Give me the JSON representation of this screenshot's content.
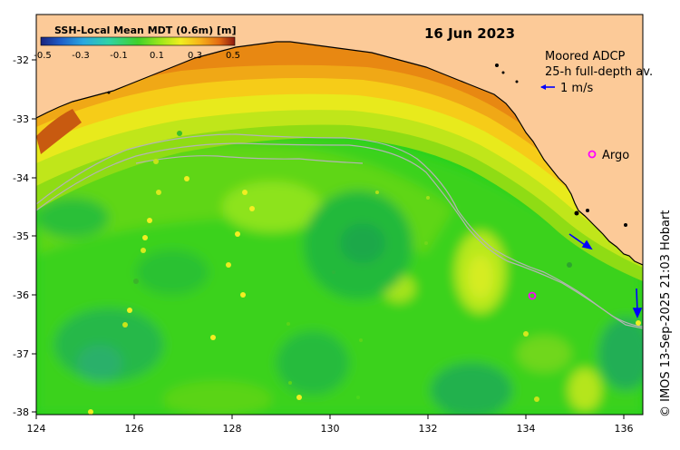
{
  "title": "16 Jun 2023",
  "colorbar": {
    "label": "SSH-Local Mean MDT (0.6m) [m]",
    "ticks": [
      "-0.5",
      "-0.3",
      "-0.1",
      "0.1",
      "0.3",
      "0.5"
    ],
    "min": -0.5,
    "max": 0.5
  },
  "legend": {
    "adcp_line1": "Moored ADCP",
    "adcp_line2": "25-h full-depth av.",
    "scale_label": "1 m/s",
    "argo_label": "Argo"
  },
  "credit": "© IMOS 13-Sep-2025 21:03 Hobart",
  "colors": {
    "land": "#fcca98",
    "argo": "#ff00ff",
    "arrow": "#0000ff",
    "contour": "#b4b4b4"
  },
  "axes": {
    "x_ticks": [
      "124",
      "126",
      "128",
      "130",
      "132",
      "134",
      "136"
    ],
    "y_ticks": [
      "-32",
      "-33",
      "-34",
      "-35",
      "-36",
      "-37",
      "-38"
    ],
    "lon_range": [
      124,
      136.5
    ],
    "lat_range": [
      -38.1,
      -31.5
    ]
  },
  "argo_floats": [
    {
      "lon": 134.2,
      "lat": -36.0
    }
  ],
  "adcp_moorings": [
    {
      "lon": 135.0,
      "lat": -35.0,
      "u": 0.55,
      "v": -0.3
    },
    {
      "lon": 136.4,
      "lat": -35.9,
      "u": 0.05,
      "v": -0.55
    }
  ]
}
